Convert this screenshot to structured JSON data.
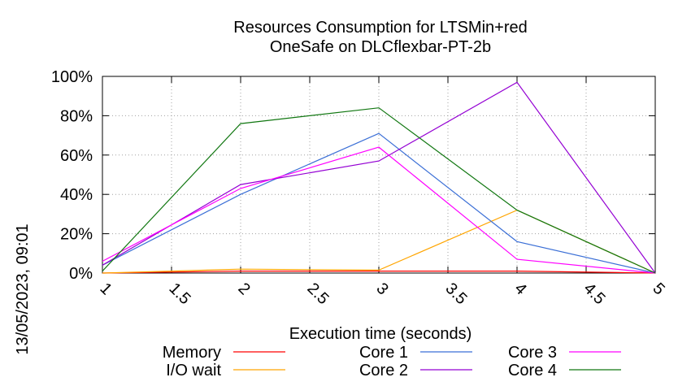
{
  "chart_data": {
    "type": "line",
    "title_line1": "Resources Consumption for LTSMin+red",
    "title_line2": "OneSafe on DLCflexbar-PT-2b",
    "xlabel": "Execution time (seconds)",
    "ylabel": "",
    "side_label": "13/05/2023, 09:01",
    "xlim": [
      1,
      5
    ],
    "ylim": [
      0,
      100
    ],
    "x_ticks": [
      "1",
      "1.5",
      "2",
      "2.5",
      "3",
      "3.5",
      "4",
      "4.5",
      "5"
    ],
    "x_tick_values": [
      1,
      1.5,
      2,
      2.5,
      3,
      3.5,
      4,
      4.5,
      5
    ],
    "y_ticks": [
      "0%",
      "20%",
      "40%",
      "60%",
      "80%",
      "100%"
    ],
    "y_tick_values": [
      0,
      20,
      40,
      60,
      80,
      100
    ],
    "grid": true,
    "legend_position": "bottom",
    "x": [
      1,
      2,
      3,
      4,
      5
    ],
    "series": [
      {
        "name": "Memory",
        "color": "#ff0000",
        "values": [
          0,
          1,
          1,
          1,
          0
        ]
      },
      {
        "name": "I/O wait",
        "color": "#ffa500",
        "values": [
          0,
          2,
          1.5,
          32,
          0
        ]
      },
      {
        "name": "Core 1",
        "color": "#3b6fd6",
        "values": [
          4,
          40,
          71,
          16,
          0
        ]
      },
      {
        "name": "Core 2",
        "color": "#9400d3",
        "values": [
          4,
          45,
          57,
          97,
          0
        ]
      },
      {
        "name": "Core 3",
        "color": "#ff00ff",
        "values": [
          6,
          43,
          64,
          7,
          0
        ]
      },
      {
        "name": "Core 4",
        "color": "#117711",
        "values": [
          1,
          76,
          84,
          32,
          0
        ]
      }
    ]
  }
}
